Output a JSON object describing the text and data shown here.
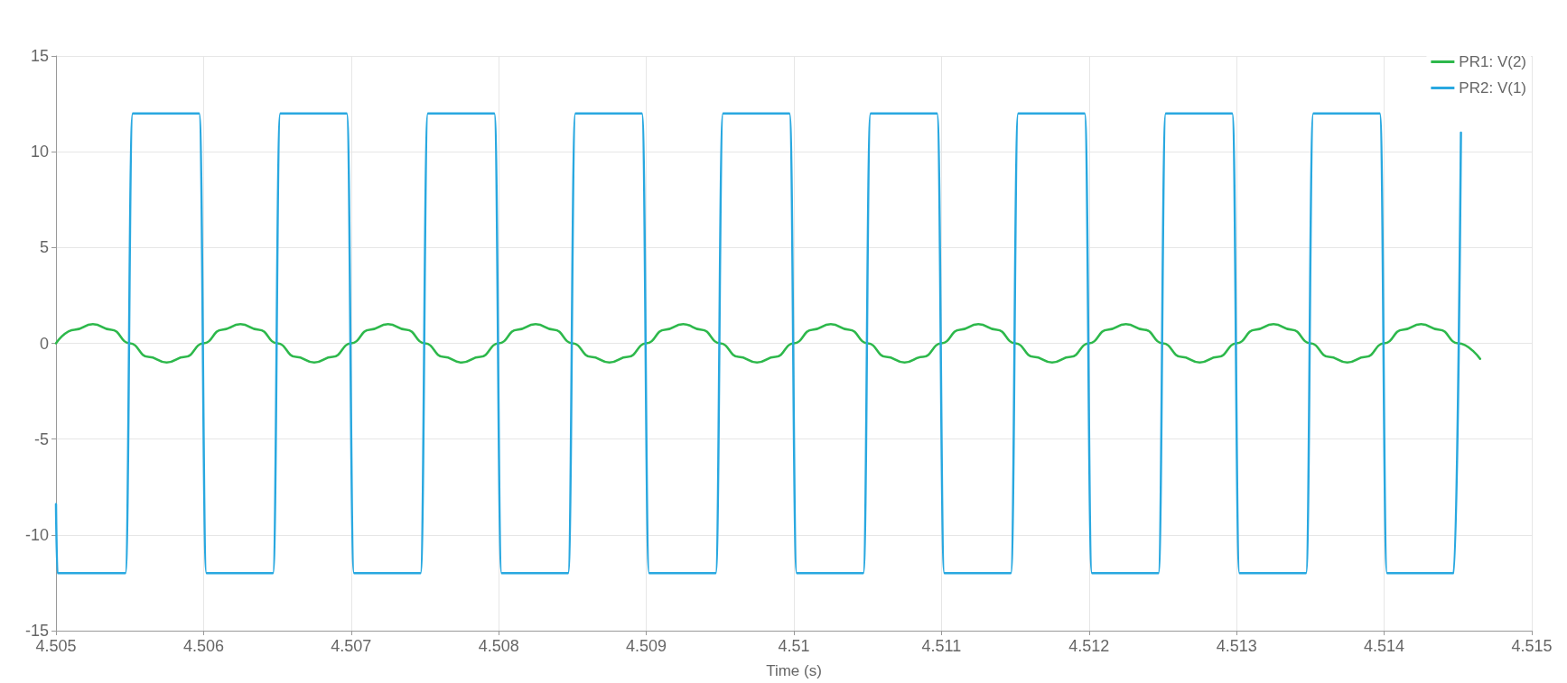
{
  "chart_data": {
    "type": "line",
    "xlabel": "Time (s)",
    "xlim": [
      4.505,
      4.515
    ],
    "xticks": [
      4.505,
      4.506,
      4.507,
      4.508,
      4.509,
      4.51,
      4.511,
      4.512,
      4.513,
      4.514,
      4.515
    ],
    "ylim": [
      -15,
      15
    ],
    "yticks": [
      -15,
      -10,
      -5,
      0,
      5,
      10,
      15
    ],
    "grid": true,
    "legend": "top right",
    "marker": "none",
    "line_style": "solid",
    "series": [
      {
        "name": "PR1: V(2)",
        "color": "#2db84b",
        "x": [
          4.505,
          4.505125,
          4.50525,
          4.505375,
          4.5055,
          4.505625,
          4.50575,
          4.505875,
          4.506,
          4.506125,
          4.50625,
          4.506375,
          4.5065,
          4.506625,
          4.50675,
          4.506875,
          4.507,
          4.507125,
          4.50725,
          4.507375,
          4.5075,
          4.507625,
          4.50775,
          4.507875,
          4.508,
          4.508125,
          4.50825,
          4.508375,
          4.5085,
          4.508625,
          4.50875,
          4.508875,
          4.509,
          4.509125,
          4.50925,
          4.509375,
          4.5095,
          4.509625,
          4.50975,
          4.509875,
          4.51,
          4.510125,
          4.51025,
          4.510375,
          4.5105,
          4.510625,
          4.51075,
          4.510875,
          4.511,
          4.511125,
          4.51125,
          4.511375,
          4.5115,
          4.511625,
          4.51175,
          4.511875,
          4.512,
          4.512125,
          4.51225,
          4.512375,
          4.5125,
          4.512625,
          4.51275,
          4.512875,
          4.513,
          4.513125,
          4.51325,
          4.513375,
          4.5135,
          4.513625,
          4.51375,
          4.513875,
          4.514,
          4.514125,
          4.51425,
          4.514375,
          4.5145,
          4.51465
        ],
        "values": [
          0,
          0.71,
          1,
          0.71,
          0,
          -0.71,
          -1,
          -0.71,
          0,
          0.71,
          1,
          0.71,
          0,
          -0.71,
          -1,
          -0.71,
          0,
          0.71,
          1,
          0.71,
          0,
          -0.71,
          -1,
          -0.71,
          0,
          0.71,
          1,
          0.71,
          0,
          -0.71,
          -1,
          -0.71,
          0,
          0.71,
          1,
          0.71,
          0,
          -0.71,
          -1,
          -0.71,
          0,
          0.71,
          1,
          0.71,
          0,
          -0.71,
          -1,
          -0.71,
          0,
          0.71,
          1,
          0.71,
          0,
          -0.71,
          -1,
          -0.71,
          0,
          0.71,
          1,
          0.71,
          0,
          -0.71,
          -1,
          -0.71,
          0,
          0.71,
          1,
          0.71,
          0,
          -0.71,
          -1,
          -0.71,
          0,
          0.71,
          1,
          0.71,
          0,
          -0.81
        ]
      },
      {
        "name": "PR2: V(1)",
        "color": "#29a8e0",
        "x": [
          4.505,
          4.50501,
          4.50547,
          4.50552,
          4.50597,
          4.50602,
          4.50647,
          4.50652,
          4.50697,
          4.50702,
          4.50747,
          4.50752,
          4.50797,
          4.50802,
          4.50847,
          4.50852,
          4.50897,
          4.50902,
          4.50947,
          4.50952,
          4.50997,
          4.51002,
          4.51047,
          4.51052,
          4.51097,
          4.51102,
          4.51147,
          4.51152,
          4.51197,
          4.51202,
          4.51247,
          4.51252,
          4.51297,
          4.51302,
          4.51347,
          4.51352,
          4.51397,
          4.51402,
          4.51447,
          4.51452
        ],
        "values": [
          -8.4,
          -12,
          -12,
          12,
          12,
          -12,
          -12,
          12,
          12,
          -12,
          -12,
          12,
          12,
          -12,
          -12,
          12,
          12,
          -12,
          -12,
          12,
          12,
          -12,
          -12,
          12,
          12,
          -12,
          -12,
          12,
          12,
          -12,
          -12,
          12,
          12,
          -12,
          -12,
          12,
          12,
          -12,
          -12,
          11
        ]
      }
    ]
  }
}
